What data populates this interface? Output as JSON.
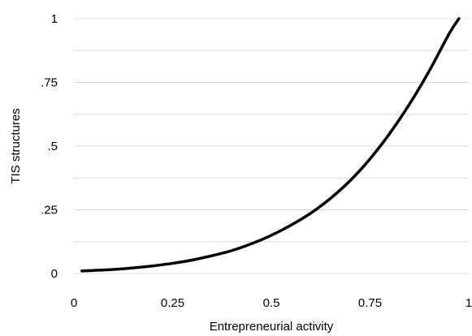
{
  "chart_data": {
    "type": "line",
    "title": "",
    "xlabel": "Entrepreneurial activity",
    "ylabel": "TIS structures",
    "xlim": [
      0,
      1
    ],
    "ylim": [
      0,
      1
    ],
    "x_ticks": [
      {
        "value": 0,
        "label": "0"
      },
      {
        "value": 0.25,
        "label": "0.25"
      },
      {
        "value": 0.5,
        "label": "0.5"
      },
      {
        "value": 0.75,
        "label": "0.75"
      },
      {
        "value": 1,
        "label": "1"
      }
    ],
    "y_ticks": [
      {
        "value": 0,
        "label": "0"
      },
      {
        "value": 0.25,
        "label": ".25"
      },
      {
        "value": 0.5,
        "label": ".5"
      },
      {
        "value": 0.75,
        "label": ".75"
      },
      {
        "value": 1,
        "label": "1"
      }
    ],
    "grid": "horizontal",
    "grid_minor_y_step": 0.125,
    "legend": "none",
    "series": [
      {
        "color": "#000000",
        "x": [
          0.02,
          0.05,
          0.1,
          0.15,
          0.2,
          0.25,
          0.3,
          0.35,
          0.4,
          0.45,
          0.5,
          0.55,
          0.6,
          0.65,
          0.7,
          0.75,
          0.8,
          0.85,
          0.9,
          0.95,
          0.975
        ],
        "y": [
          0.01,
          0.012,
          0.016,
          0.022,
          0.03,
          0.04,
          0.053,
          0.07,
          0.09,
          0.117,
          0.15,
          0.19,
          0.237,
          0.295,
          0.365,
          0.45,
          0.55,
          0.665,
          0.795,
          0.94,
          1.0
        ]
      }
    ]
  }
}
